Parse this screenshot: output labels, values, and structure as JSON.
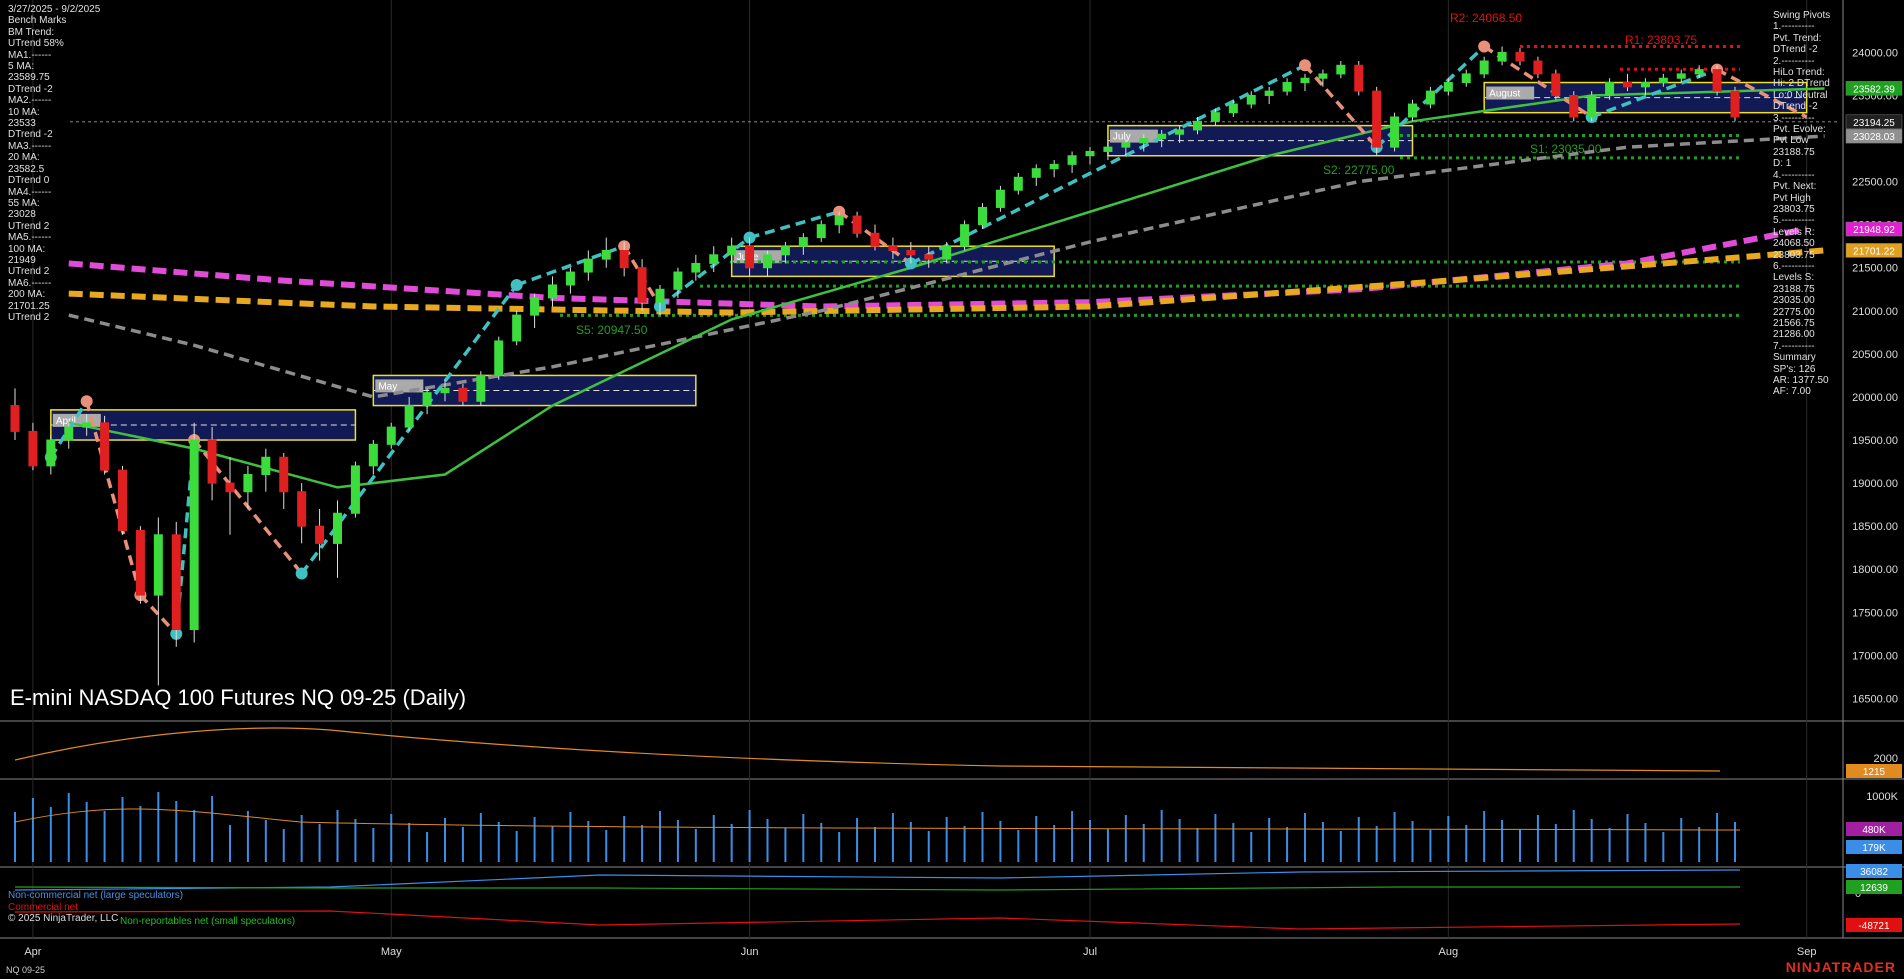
{
  "header": {
    "date_range": "3/27/2025 - 9/2/2025",
    "bench_marks": [
      "Bench Marks",
      "BM Trend:",
      "UTrend 58%",
      "MA1.------",
      "5 MA:",
      "23589.75",
      "DTrend -2",
      "MA2.------",
      "10 MA:",
      "23533",
      "DTrend -2",
      "MA3.------",
      "20 MA:",
      "23582.5",
      "DTrend 0",
      "MA4.------",
      "55 MA:",
      "23028",
      "UTrend 2",
      "MA5.------",
      "100 MA:",
      "21949",
      "UTrend 2",
      "MA6.------",
      "200 MA:",
      "21701.25",
      "UTrend 2"
    ]
  },
  "swing_pivots": [
    "Swing Pivots",
    "1.----------",
    "Pvt. Trend:",
    "DTrend -2",
    "2.----------",
    "HiLo Trend:",
    "Hi:-2 DTrend",
    "Lo:0 Neutral",
    "DTrend -2",
    "3.----------",
    "Pvt. Evolve:",
    "Pvt Low",
    "23188.75",
    "D: 1",
    "4.----------",
    "Pvt. Next:",
    "Pvt High",
    "23803.75",
    "5.----------",
    "Levels R:",
    "24068.50",
    "23803.75",
    "6.----------",
    "Levels S:",
    "23188.75",
    "23035.00",
    "22775.00",
    "21566.75",
    "21286.00",
    "7.----------",
    "Summary",
    "SP's: 126",
    "AR: 1377.50",
    "AF: 7.00"
  ],
  "title": "E-mini NASDAQ 100 Futures NQ 09-25 (Daily)",
  "symbol_footer": "NQ 09-25",
  "watermark": "NINJATRADER",
  "copyright": "© 2025 NinjaTrader, LLC",
  "cot_legend": {
    "noncommercial": "Non-commercial net (large speculators)",
    "commercial": "Commercial net",
    "small": "Non-reportables net (small speculators)"
  },
  "levels_text": {
    "r1": "R1: 23803.75",
    "r2": "R2: 24068.50",
    "s1": "S1: 23035.00",
    "s2": "S2: 22775.00",
    "s5": "S5: 20947.50"
  },
  "vwap_labels": [
    "April",
    "May",
    "June",
    "July",
    "August"
  ],
  "colors": {
    "bull": "#3ddc3d",
    "bear": "#e02020",
    "ma5": "#e04bd8",
    "ma200": "#e8a820",
    "ma55": "#8c8c8c",
    "ma20": "#40c040",
    "pivot_up": "#40c0c0",
    "pivot_dn": "#e8907a",
    "accent_red": "#e01010",
    "accent_green": "#20a020"
  },
  "chart_data": {
    "type": "candlestick",
    "title": "E-mini NASDAQ 100 Futures NQ 09-25 (Daily)",
    "y_range": [
      16250,
      24550
    ],
    "y_ticks": [
      16500,
      17000,
      17500,
      18000,
      18500,
      19000,
      19500,
      20000,
      20500,
      21000,
      21500,
      22000,
      22500,
      23000,
      23500,
      24000
    ],
    "x_ticks": [
      "Apr",
      "May",
      "Jun",
      "Jul",
      "Aug",
      "Sep"
    ],
    "x_tick_index": [
      1,
      21,
      41,
      60,
      80,
      100
    ],
    "candles": [
      [
        19900,
        20100,
        19500,
        19600
      ],
      [
        19600,
        19700,
        19150,
        19200
      ],
      [
        19200,
        19550,
        19100,
        19500
      ],
      [
        19500,
        19700,
        19400,
        19650
      ],
      [
        19650,
        19800,
        19550,
        19700
      ],
      [
        19700,
        19780,
        19100,
        19150
      ],
      [
        19150,
        19200,
        18400,
        18450
      ],
      [
        18450,
        18500,
        17600,
        17700
      ],
      [
        17700,
        18600,
        16650,
        18400
      ],
      [
        18400,
        18550,
        17100,
        17300
      ],
      [
        17300,
        19700,
        17150,
        19500
      ],
      [
        19500,
        19650,
        18800,
        19000
      ],
      [
        19000,
        19300,
        18400,
        18900
      ],
      [
        18900,
        19200,
        18700,
        19100
      ],
      [
        19100,
        19400,
        18900,
        19300
      ],
      [
        19300,
        19350,
        18700,
        18900
      ],
      [
        18900,
        19000,
        18300,
        18500
      ],
      [
        18500,
        18700,
        18100,
        18300
      ],
      [
        18300,
        18800,
        17900,
        18650
      ],
      [
        18650,
        19250,
        18600,
        19200
      ],
      [
        19200,
        19500,
        19100,
        19450
      ],
      [
        19450,
        19700,
        19400,
        19650
      ],
      [
        19650,
        20000,
        19600,
        19900
      ],
      [
        19900,
        20100,
        19800,
        20050
      ],
      [
        20050,
        20200,
        19950,
        20100
      ],
      [
        20100,
        20150,
        19900,
        19950
      ],
      [
        19950,
        20300,
        19900,
        20250
      ],
      [
        20250,
        20700,
        20200,
        20650
      ],
      [
        20650,
        21000,
        20600,
        20950
      ],
      [
        20950,
        21200,
        20800,
        21150
      ],
      [
        21150,
        21400,
        21050,
        21300
      ],
      [
        21300,
        21500,
        21200,
        21450
      ],
      [
        21450,
        21700,
        21350,
        21600
      ],
      [
        21600,
        21850,
        21500,
        21700
      ],
      [
        21700,
        21800,
        21400,
        21500
      ],
      [
        21500,
        21600,
        21000,
        21100
      ],
      [
        21100,
        21300,
        20950,
        21250
      ],
      [
        21250,
        21500,
        21150,
        21450
      ],
      [
        21450,
        21650,
        21350,
        21550
      ],
      [
        21550,
        21750,
        21450,
        21650
      ],
      [
        21650,
        21850,
        21550,
        21750
      ],
      [
        21750,
        21850,
        21400,
        21500
      ],
      [
        21500,
        21700,
        21400,
        21650
      ],
      [
        21650,
        21800,
        21550,
        21750
      ],
      [
        21750,
        21900,
        21650,
        21850
      ],
      [
        21850,
        22050,
        21800,
        22000
      ],
      [
        22000,
        22150,
        21900,
        22100
      ],
      [
        22100,
        22150,
        21850,
        21900
      ],
      [
        21900,
        22000,
        21700,
        21750
      ],
      [
        21750,
        21850,
        21600,
        21700
      ],
      [
        21700,
        21800,
        21550,
        21650
      ],
      [
        21650,
        21750,
        21500,
        21600
      ],
      [
        21600,
        21800,
        21550,
        21750
      ],
      [
        21750,
        22050,
        21700,
        22000
      ],
      [
        22000,
        22250,
        21950,
        22200
      ],
      [
        22200,
        22450,
        22150,
        22400
      ],
      [
        22400,
        22600,
        22350,
        22550
      ],
      [
        22550,
        22700,
        22450,
        22650
      ],
      [
        22650,
        22750,
        22550,
        22700
      ],
      [
        22700,
        22850,
        22600,
        22800
      ],
      [
        22800,
        22900,
        22700,
        22850
      ],
      [
        22850,
        22950,
        22750,
        22900
      ],
      [
        22900,
        23000,
        22800,
        22950
      ],
      [
        22950,
        23050,
        22850,
        23000
      ],
      [
        23000,
        23100,
        22900,
        23050
      ],
      [
        23050,
        23150,
        22950,
        23100
      ],
      [
        23100,
        23250,
        23050,
        23200
      ],
      [
        23200,
        23350,
        23150,
        23300
      ],
      [
        23300,
        23450,
        23250,
        23400
      ],
      [
        23400,
        23550,
        23350,
        23500
      ],
      [
        23500,
        23600,
        23400,
        23550
      ],
      [
        23550,
        23700,
        23500,
        23650
      ],
      [
        23650,
        23750,
        23550,
        23700
      ],
      [
        23700,
        23800,
        23600,
        23750
      ],
      [
        23750,
        23900,
        23700,
        23850
      ],
      [
        23850,
        23900,
        23500,
        23550
      ],
      [
        23550,
        23600,
        22800,
        22900
      ],
      [
        22900,
        23300,
        22850,
        23250
      ],
      [
        23250,
        23450,
        23200,
        23400
      ],
      [
        23400,
        23600,
        23350,
        23550
      ],
      [
        23550,
        23700,
        23500,
        23650
      ],
      [
        23650,
        23800,
        23600,
        23750
      ],
      [
        23750,
        23950,
        23700,
        23900
      ],
      [
        23900,
        24068,
        23850,
        24000
      ],
      [
        24000,
        24050,
        23850,
        23900
      ],
      [
        23900,
        23950,
        23700,
        23750
      ],
      [
        23750,
        23800,
        23450,
        23500
      ],
      [
        23500,
        23550,
        23200,
        23250
      ],
      [
        23250,
        23550,
        23200,
        23500
      ],
      [
        23500,
        23700,
        23450,
        23650
      ],
      [
        23650,
        23750,
        23550,
        23600
      ],
      [
        23600,
        23700,
        23500,
        23650
      ],
      [
        23650,
        23750,
        23600,
        23700
      ],
      [
        23700,
        23800,
        23650,
        23750
      ],
      [
        23750,
        23850,
        23700,
        23800
      ],
      [
        23800,
        23850,
        23500,
        23550
      ],
      [
        23550,
        23600,
        23200,
        23250
      ]
    ],
    "moving_averages": [
      {
        "name": "5 MA",
        "value": 23589.75
      },
      {
        "name": "10 MA",
        "value": 23533
      },
      {
        "name": "20 MA",
        "value": 23582.5
      },
      {
        "name": "55 MA",
        "value": 23028
      },
      {
        "name": "100 MA",
        "value": 21949
      },
      {
        "name": "200 MA",
        "value": 21701.25
      }
    ],
    "resistance_levels": [
      24068.5,
      23803.75
    ],
    "support_levels": [
      23188.75,
      23035.0,
      22775.0,
      21566.75,
      21286.0,
      20947.5
    ],
    "price_axis_tags": [
      {
        "value": 23582.39,
        "label": "23582.39",
        "color": "#20a020"
      },
      {
        "value": 23194.25,
        "label": "23194.25",
        "color": "#202020"
      },
      {
        "value": 23028.03,
        "label": "23028.03",
        "color": "#909090"
      },
      {
        "value": 21948.92,
        "label": "21948.92",
        "color": "#e020d0"
      },
      {
        "value": 21701.22,
        "label": "21701.22",
        "color": "#e0a020"
      }
    ],
    "indicator_panel": {
      "label": "1215",
      "tick": "2000",
      "color": "#e08a20"
    },
    "volume_panel": {
      "tick": "1000K",
      "tags": [
        {
          "label": "480K",
          "color": "#a020a0"
        },
        {
          "label": "179K",
          "color": "#3a8ee8"
        }
      ]
    },
    "cot_panel": {
      "tick": "0",
      "tags": [
        {
          "label": "36082",
          "color": "#3a8ee8"
        },
        {
          "label": "12639",
          "color": "#20a020"
        },
        {
          "label": "-48721",
          "color": "#e01010"
        }
      ]
    }
  }
}
